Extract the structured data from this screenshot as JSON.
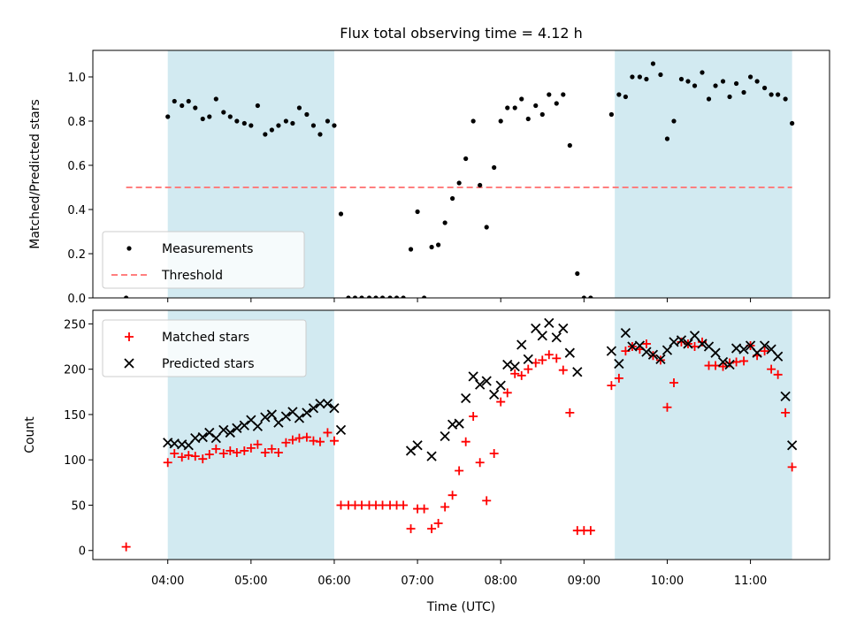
{
  "chart_data": {
    "type": "scatter",
    "title": "Flux total observing time = 4.12 h",
    "xlabel": "Time (UTC)",
    "x_unit": "hours UTC",
    "x_ticks": [
      {
        "value": 4,
        "label": "04:00"
      },
      {
        "value": 5,
        "label": "05:00"
      },
      {
        "value": 6,
        "label": "06:00"
      },
      {
        "value": 7,
        "label": "07:00"
      },
      {
        "value": 8,
        "label": "08:00"
      },
      {
        "value": 9,
        "label": "09:00"
      },
      {
        "value": 10,
        "label": "10:00"
      },
      {
        "value": 11,
        "label": "11:00"
      }
    ],
    "xlim": [
      3.1,
      11.95
    ],
    "shaded_intervals": [
      [
        4.0,
        6.0
      ],
      [
        9.37,
        11.5
      ]
    ],
    "shade_color": "#add8e6",
    "panels": [
      {
        "ylabel": "Matched/Predicted stars",
        "ylim": [
          0,
          1.12
        ],
        "yticks": [
          0.0,
          0.2,
          0.4,
          0.6,
          0.8,
          1.0
        ],
        "ytick_labels": [
          "0.0",
          "0.2",
          "0.4",
          "0.6",
          "0.8",
          "1.0"
        ],
        "legend_position": "lower-left",
        "threshold": {
          "name": "Threshold",
          "value": 0.5,
          "x_range": [
            3.5,
            11.5
          ],
          "color": "#ff7f7f"
        },
        "series": [
          {
            "name": "Measurements",
            "marker": "dot",
            "color": "#000000",
            "x": [
              3.5,
              4.0,
              4.08,
              4.17,
              4.25,
              4.33,
              4.42,
              4.5,
              4.58,
              4.67,
              4.75,
              4.83,
              4.92,
              5.0,
              5.08,
              5.17,
              5.25,
              5.33,
              5.42,
              5.5,
              5.58,
              5.67,
              5.75,
              5.83,
              5.92,
              6.0,
              6.08,
              6.17,
              6.25,
              6.33,
              6.42,
              6.5,
              6.58,
              6.67,
              6.75,
              6.83,
              6.92,
              7.0,
              7.08,
              7.17,
              7.25,
              7.33,
              7.42,
              7.5,
              7.58,
              7.67,
              7.75,
              7.83,
              7.92,
              8.0,
              8.08,
              8.17,
              8.25,
              8.33,
              8.42,
              8.5,
              8.58,
              8.67,
              8.75,
              8.83,
              8.92,
              9.0,
              9.08,
              9.33,
              9.42,
              9.5,
              9.58,
              9.67,
              9.75,
              9.83,
              9.92,
              10.0,
              10.08,
              10.17,
              10.25,
              10.33,
              10.42,
              10.5,
              10.58,
              10.67,
              10.75,
              10.83,
              10.92,
              11.0,
              11.08,
              11.17,
              11.25,
              11.33,
              11.42,
              11.5
            ],
            "y": [
              0.0,
              0.82,
              0.89,
              0.87,
              0.89,
              0.86,
              0.81,
              0.82,
              0.9,
              0.84,
              0.82,
              0.8,
              0.79,
              0.78,
              0.87,
              0.74,
              0.76,
              0.78,
              0.8,
              0.79,
              0.86,
              0.83,
              0.78,
              0.74,
              0.8,
              0.78,
              0.38,
              0.0,
              0.0,
              0.0,
              0.0,
              0.0,
              0.0,
              0.0,
              0.0,
              0.0,
              0.22,
              0.39,
              0.0,
              0.23,
              0.24,
              0.34,
              0.45,
              0.52,
              0.63,
              0.8,
              0.51,
              0.32,
              0.59,
              0.8,
              0.86,
              0.86,
              0.9,
              0.81,
              0.87,
              0.83,
              0.92,
              0.88,
              0.92,
              0.69,
              0.11,
              0.0,
              0.0,
              0.83,
              0.92,
              0.91,
              1.0,
              1.0,
              0.99,
              1.06,
              1.01,
              0.72,
              0.8,
              0.99,
              0.98,
              0.96,
              1.02,
              0.9,
              0.96,
              0.98,
              0.91,
              0.97,
              0.93,
              1.0,
              0.98,
              0.95,
              0.92,
              0.92,
              0.9,
              0.79
            ]
          }
        ]
      },
      {
        "ylabel": "Count",
        "ylim": [
          -10,
          265
        ],
        "yticks": [
          0,
          50,
          100,
          150,
          200,
          250
        ],
        "ytick_labels": [
          "0",
          "50",
          "100",
          "150",
          "200",
          "250"
        ],
        "legend_position": "upper-left",
        "series": [
          {
            "name": "Matched stars",
            "marker": "plus",
            "color": "#ff0000",
            "x": [
              3.5,
              4.0,
              4.08,
              4.17,
              4.25,
              4.33,
              4.42,
              4.5,
              4.58,
              4.67,
              4.75,
              4.83,
              4.92,
              5.0,
              5.08,
              5.17,
              5.25,
              5.33,
              5.42,
              5.5,
              5.58,
              5.67,
              5.75,
              5.83,
              5.92,
              6.0,
              6.08,
              6.17,
              6.25,
              6.33,
              6.42,
              6.5,
              6.58,
              6.67,
              6.75,
              6.83,
              6.92,
              7.0,
              7.08,
              7.17,
              7.25,
              7.33,
              7.42,
              7.5,
              7.58,
              7.67,
              7.75,
              7.83,
              7.92,
              8.0,
              8.08,
              8.17,
              8.25,
              8.33,
              8.42,
              8.5,
              8.58,
              8.67,
              8.75,
              8.83,
              8.92,
              9.0,
              9.08,
              9.33,
              9.42,
              9.5,
              9.58,
              9.67,
              9.75,
              9.83,
              9.92,
              10.0,
              10.08,
              10.17,
              10.25,
              10.33,
              10.42,
              10.5,
              10.58,
              10.67,
              10.75,
              10.83,
              10.92,
              11.0,
              11.08,
              11.17,
              11.25,
              11.33,
              11.42,
              11.5
            ],
            "y": [
              4,
              97,
              107,
              103,
              105,
              104,
              101,
              106,
              112,
              107,
              110,
              108,
              110,
              113,
              117,
              108,
              112,
              108,
              119,
              122,
              124,
              125,
              121,
              120,
              130,
              121,
              50,
              50,
              50,
              50,
              50,
              50,
              50,
              50,
              50,
              50,
              24,
              46,
              46,
              24,
              30,
              48,
              61,
              88,
              120,
              148,
              97,
              55,
              107,
              164,
              174,
              195,
              193,
              200,
              207,
              210,
              216,
              212,
              199,
              152,
              22,
              22,
              22,
              182,
              190,
              220,
              225,
              222,
              228,
              215,
              210,
              158,
              185,
              230,
              228,
              225,
              230,
              204,
              204,
              203,
              207,
              208,
              209,
              226,
              215,
              220,
              200,
              194,
              152,
              92
            ]
          },
          {
            "name": "Predicted stars",
            "marker": "x",
            "color": "#000000",
            "x": [
              4.0,
              4.08,
              4.17,
              4.25,
              4.33,
              4.42,
              4.5,
              4.58,
              4.67,
              4.75,
              4.83,
              4.92,
              5.0,
              5.08,
              5.17,
              5.25,
              5.33,
              5.42,
              5.5,
              5.58,
              5.67,
              5.75,
              5.83,
              5.92,
              6.0,
              6.08,
              6.92,
              7.0,
              7.17,
              7.33,
              7.42,
              7.5,
              7.58,
              7.67,
              7.75,
              7.83,
              7.92,
              8.0,
              8.08,
              8.17,
              8.25,
              8.33,
              8.42,
              8.5,
              8.58,
              8.67,
              8.75,
              8.83,
              8.92,
              9.33,
              9.42,
              9.5,
              9.58,
              9.67,
              9.75,
              9.83,
              9.92,
              10.0,
              10.08,
              10.17,
              10.25,
              10.33,
              10.42,
              10.5,
              10.58,
              10.67,
              10.75,
              10.83,
              10.92,
              11.0,
              11.08,
              11.17,
              11.25,
              11.33,
              11.42,
              11.5
            ],
            "y": [
              119,
              118,
              117,
              116,
              124,
              125,
              130,
              124,
              133,
              130,
              135,
              138,
              144,
              137,
              147,
              150,
              141,
              148,
              153,
              146,
              152,
              157,
              162,
              162,
              157,
              133,
              110,
              116,
              104,
              126,
              139,
              140,
              168,
              192,
              183,
              187,
              172,
              182,
              205,
              203,
              227,
              211,
              245,
              237,
              251,
              235,
              245,
              218,
              197,
              220,
              206,
              240,
              225,
              226,
              219,
              216,
              211,
              221,
              230,
              232,
              228,
              237,
              228,
              225,
              218,
              208,
              205,
              223,
              222,
              226,
              218,
              226,
              222,
              214,
              170,
              116
            ]
          }
        ]
      }
    ]
  }
}
